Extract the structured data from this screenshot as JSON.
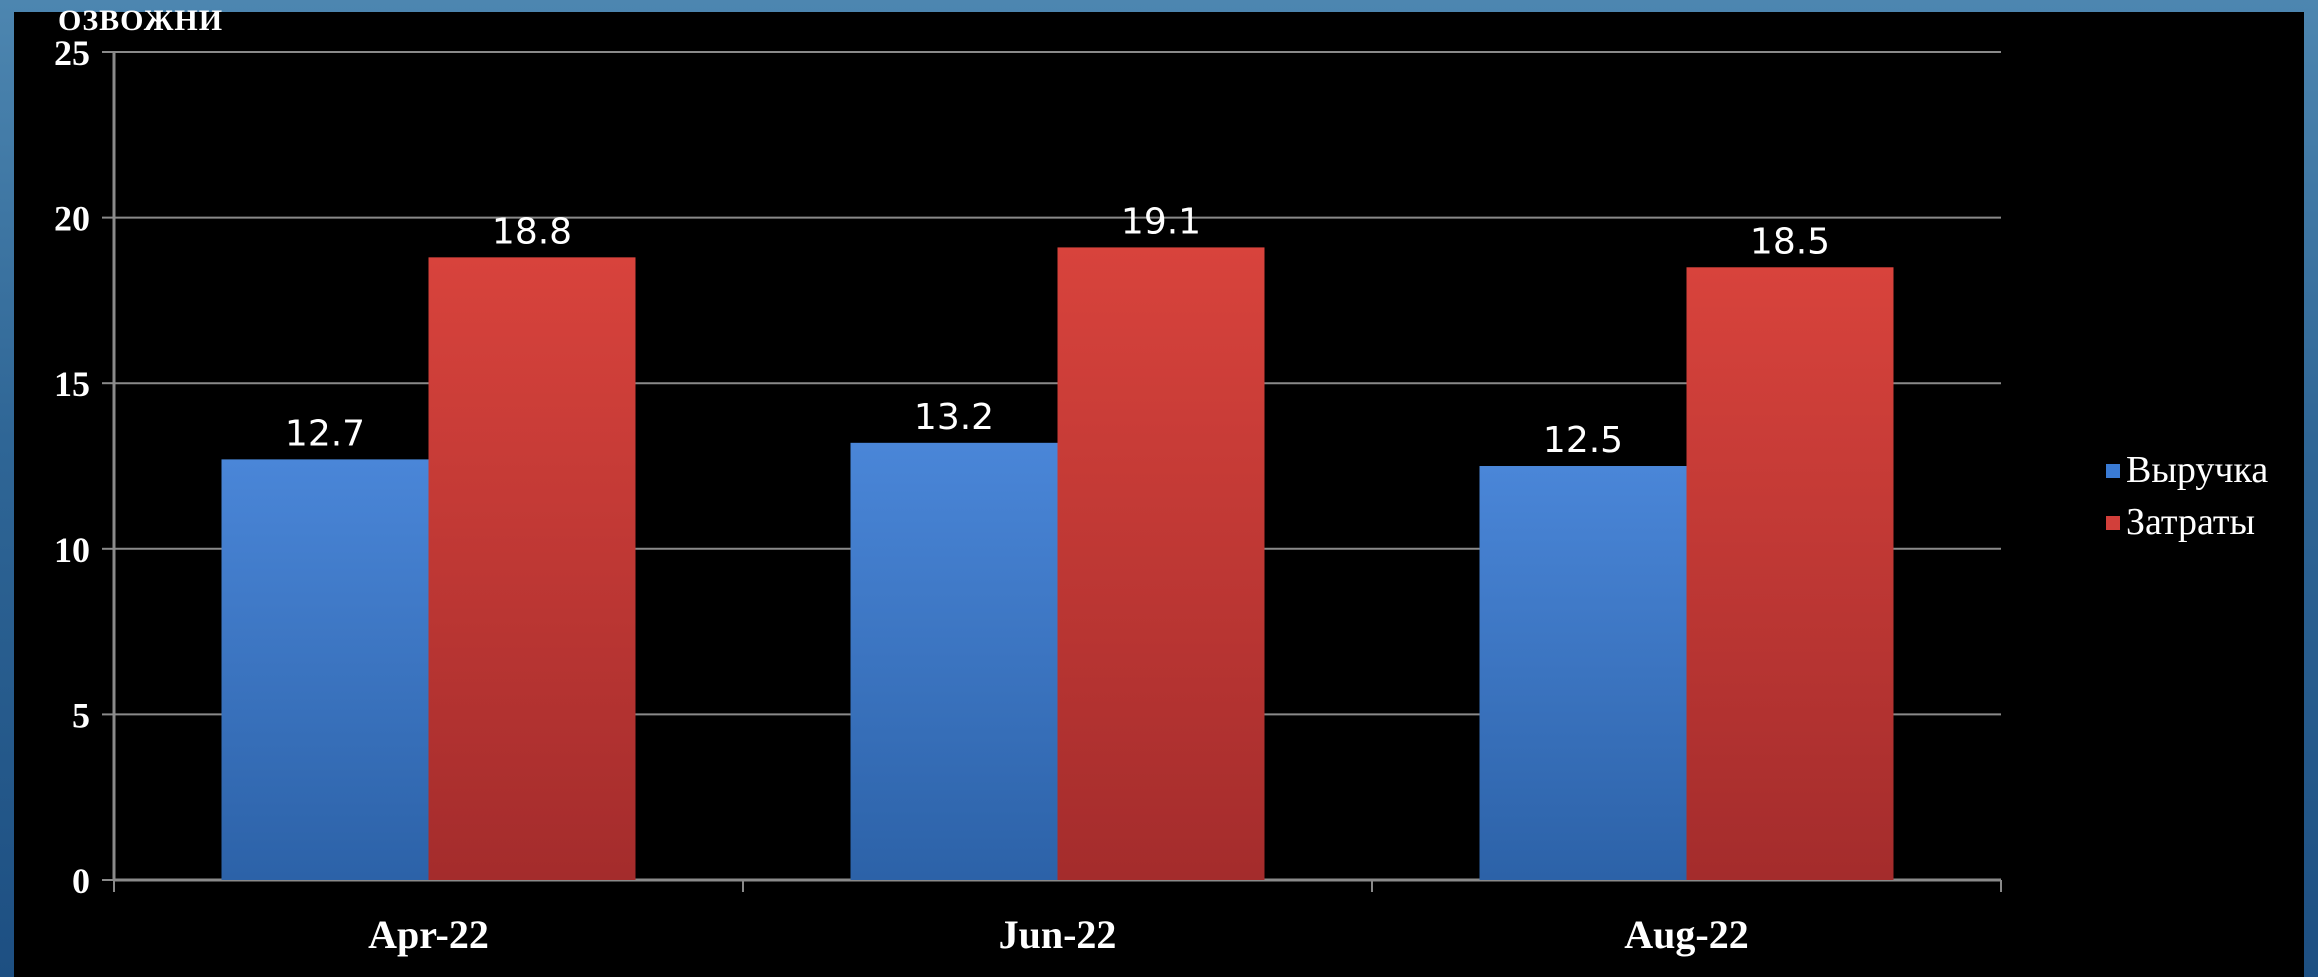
{
  "page": {
    "top_fragment": "ОЗВОЖНИ"
  },
  "chart_data": {
    "type": "bar",
    "title": "",
    "xlabel": "",
    "ylabel": "",
    "categories": [
      "Apr-22",
      "Jun-22",
      "Aug-22"
    ],
    "series": [
      {
        "name": "Выручка",
        "values": [
          12.7,
          13.2,
          12.5
        ],
        "value_labels": [
          "12.7",
          "13.2",
          "12.5"
        ],
        "color": "#3a7bd5",
        "color_dark": "#2a5fa8"
      },
      {
        "name": "Затраты",
        "values": [
          18.8,
          19.1,
          18.5
        ],
        "value_labels": [
          "18.8",
          "19.1",
          "18.5"
        ],
        "color": "#d23f3a",
        "color_dark": "#a92d2d"
      }
    ],
    "ylim": [
      0,
      25
    ],
    "yticks": [
      0,
      5,
      10,
      15,
      20,
      25
    ],
    "ytick_labels": [
      "0",
      "5",
      "10",
      "15",
      "20",
      "25"
    ],
    "grid": true,
    "legend_position": "right",
    "colors": {
      "background": "#000000",
      "frame": "#4a86b3",
      "grid": "#8a8a8a",
      "text": "#ffffff"
    }
  }
}
